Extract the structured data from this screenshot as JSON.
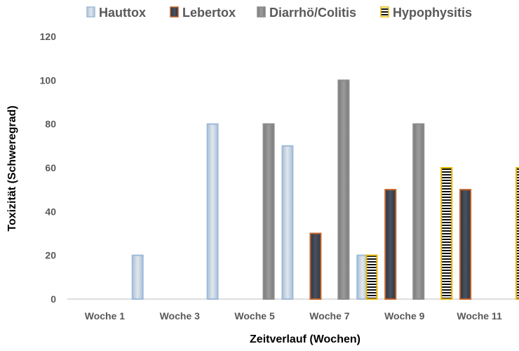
{
  "chart_data": {
    "type": "bar",
    "categories": [
      "Woche 1",
      "Woche 3",
      "Woche 5",
      "Woche 7",
      "Woche 9",
      "Woche 11"
    ],
    "series": [
      {
        "name": "Hauttox",
        "values": [
          0,
          20,
          80,
          70,
          20,
          0
        ],
        "color": "#c7d3e0",
        "edge": "#9fbbd9"
      },
      {
        "name": "Lebertox",
        "values": [
          0,
          0,
          0,
          30,
          50,
          50
        ],
        "color": "#3a4150",
        "edge": "#c0632a"
      },
      {
        "name": "Diarrhö/Colitis",
        "values": [
          0,
          0,
          80,
          100,
          80,
          0
        ],
        "color": "#8c8c8c",
        "edge": "#8c8c8c"
      },
      {
        "name": "Hypophysitis",
        "values": [
          0,
          0,
          0,
          20,
          60,
          60
        ],
        "color": "#000000",
        "edge": "#e6b800",
        "pattern": "horizontal-stripes"
      }
    ],
    "xlabel": "Zeitverlauf (Wochen)",
    "ylabel": "Toxizität (Schweregrad)",
    "ylim": [
      0,
      120
    ],
    "yticks": [
      0,
      20,
      40,
      60,
      80,
      100,
      120
    ],
    "legend": "top",
    "grid": false
  }
}
